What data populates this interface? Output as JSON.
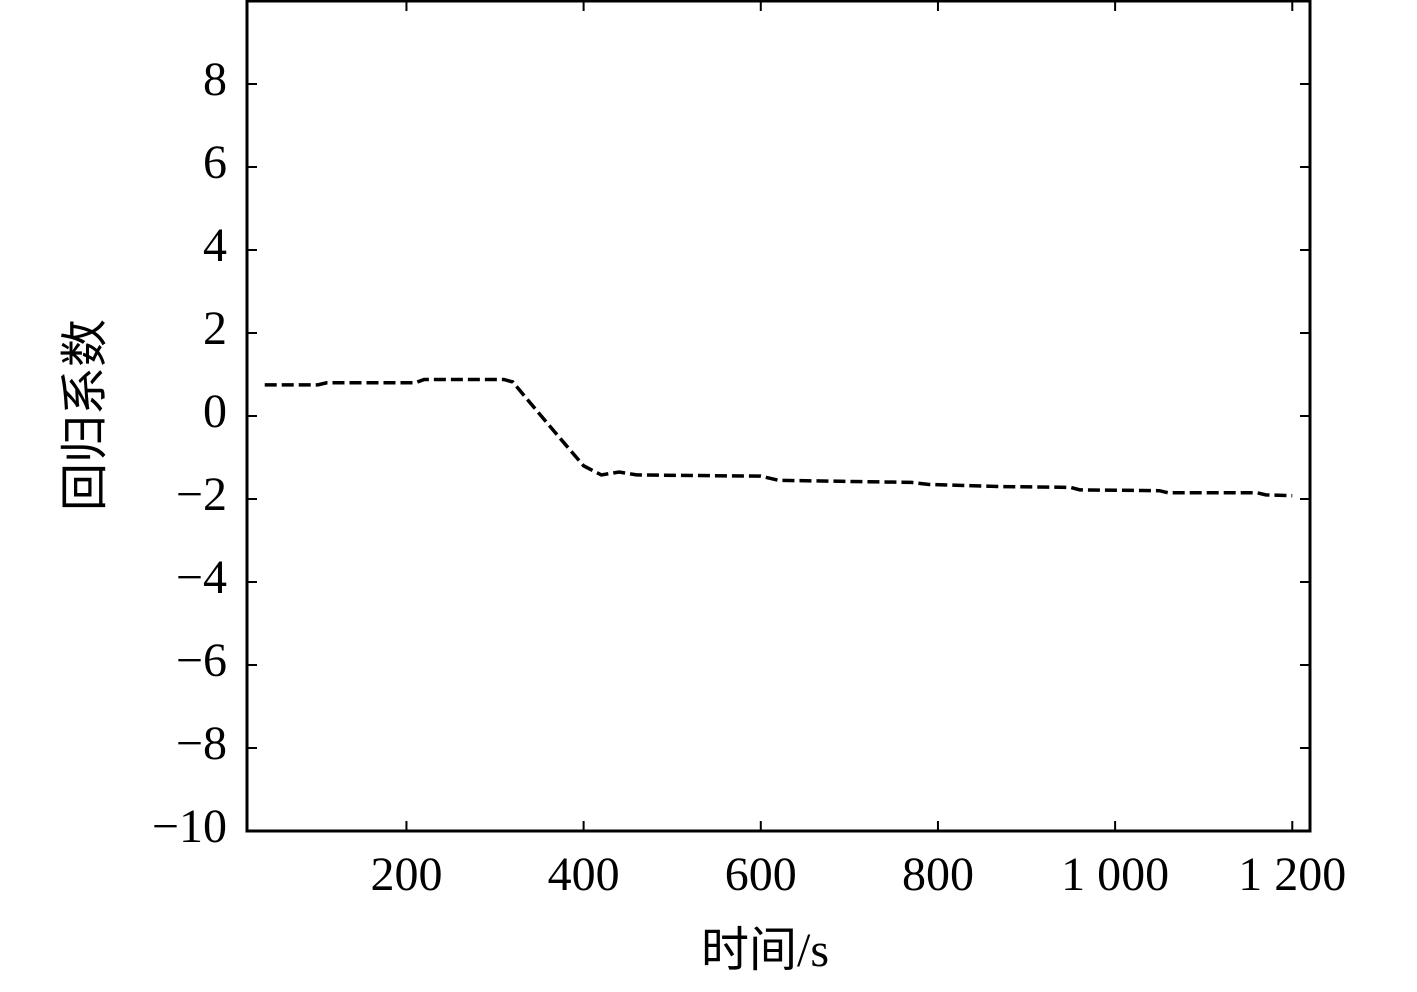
{
  "chart_data": {
    "type": "line",
    "xlabel": "时间/s",
    "ylabel": "回归系数",
    "xlim": [
      20,
      1220
    ],
    "ylim": [
      -10,
      10
    ],
    "xticks": [
      200,
      400,
      600,
      {
        "value": 800,
        "label": "800"
      },
      {
        "value": 1000,
        "label": "1 000"
      },
      {
        "value": 1200,
        "label": "1 200"
      }
    ],
    "yticks": [
      {
        "value": -10,
        "label": "−10"
      },
      {
        "value": -8,
        "label": "−8"
      },
      {
        "value": -6,
        "label": "−6"
      },
      {
        "value": -4,
        "label": "−4"
      },
      {
        "value": -2,
        "label": "−2"
      },
      0,
      2,
      4,
      6,
      8
    ],
    "grid": false,
    "series": [
      {
        "color": "#000000",
        "dashed": true,
        "x": [
          40,
          100,
          110,
          210,
          220,
          310,
          320,
          360,
          400,
          420,
          440,
          460,
          600,
          620,
          770,
          790,
          870,
          950,
          960,
          1050,
          1060,
          1160,
          1170,
          1200
        ],
        "values": [
          0.75,
          0.75,
          0.8,
          0.8,
          0.88,
          0.88,
          0.82,
          -0.2,
          -1.2,
          -1.42,
          -1.35,
          -1.42,
          -1.45,
          -1.55,
          -1.6,
          -1.65,
          -1.7,
          -1.72,
          -1.78,
          -1.8,
          -1.85,
          -1.85,
          -1.9,
          -1.92
        ]
      }
    ]
  }
}
